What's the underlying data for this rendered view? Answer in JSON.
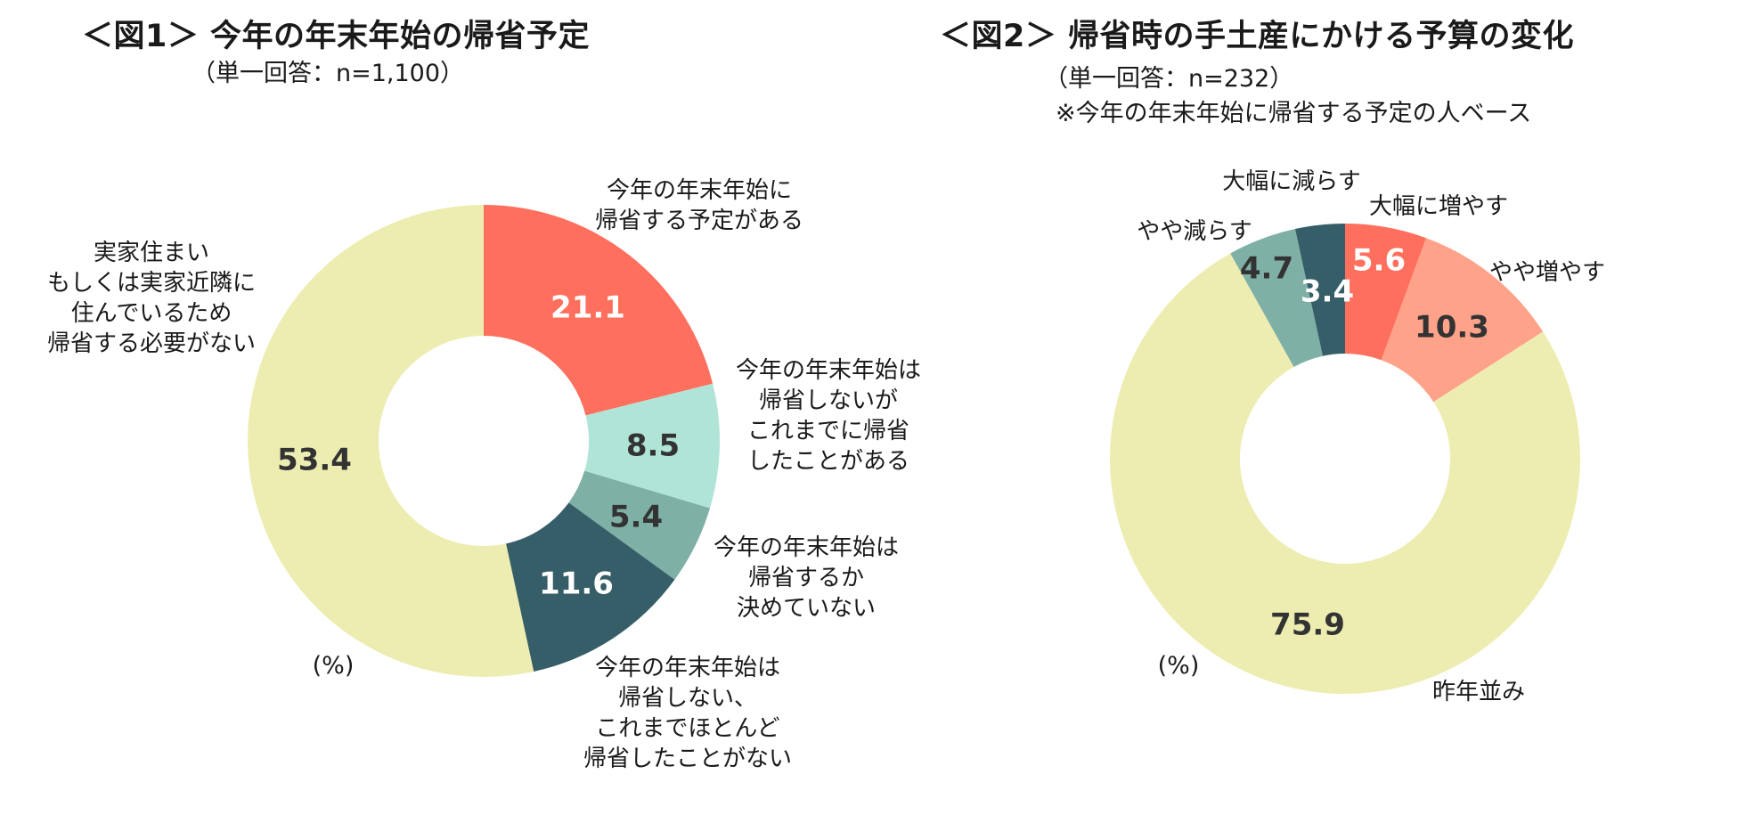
{
  "chart_data": [
    {
      "type": "pie",
      "title": "＜図1＞ 今年の年末年始の帰省予定",
      "subtitle": "（単一回答：n=1,100）",
      "note": "",
      "unit": "(%)",
      "slices": [
        {
          "label": [
            "今年の年末年始に",
            "帰省する予定がある"
          ],
          "value": 21.1,
          "value_text": "21.1",
          "color": "#FF6F5E"
        },
        {
          "label": [
            "今年の年末年始は",
            "帰省しないが",
            "これまでに帰省",
            "したことがある"
          ],
          "value": 8.5,
          "value_text": "8.5",
          "color": "#B0E4D7"
        },
        {
          "label": [
            "今年の年末年始は",
            "帰省するか",
            "決めていない"
          ],
          "value": 5.4,
          "value_text": "5.4",
          "color": "#7FB0A6"
        },
        {
          "label": [
            "今年の年末年始は",
            "帰省しない、",
            "これまでほとんど",
            "帰省したことがない"
          ],
          "value": 11.6,
          "value_text": "11.6",
          "color": "#365E68"
        },
        {
          "label": [
            "実家住まい",
            "もしくは実家近隣に",
            "住んでいるため",
            "帰省する必要がない"
          ],
          "value": 53.4,
          "value_text": "53.4",
          "color": "#EDEDB1"
        }
      ]
    },
    {
      "type": "pie",
      "title": "＜図2＞ 帰省時の手土産にかける予算の変化",
      "subtitle": "（単一回答：n=232）",
      "note": "※今年の年末年始に帰省する予定の人ベース",
      "unit": "(%)",
      "slices": [
        {
          "label": [
            "大幅に増やす"
          ],
          "value": 5.6,
          "value_text": "5.6",
          "color": "#FF6F5E"
        },
        {
          "label": [
            "やや増やす"
          ],
          "value": 10.3,
          "value_text": "10.3",
          "color": "#FFA28A"
        },
        {
          "label": [
            "昨年並み"
          ],
          "value": 75.9,
          "value_text": "75.9",
          "color": "#EDEDB1"
        },
        {
          "label": [
            "やや減らす"
          ],
          "value": 4.7,
          "value_text": "4.7",
          "color": "#7FB0A6"
        },
        {
          "label": [
            "大幅に減らす"
          ],
          "value": 3.4,
          "value_text": "3.4",
          "color": "#365E68"
        }
      ]
    }
  ]
}
